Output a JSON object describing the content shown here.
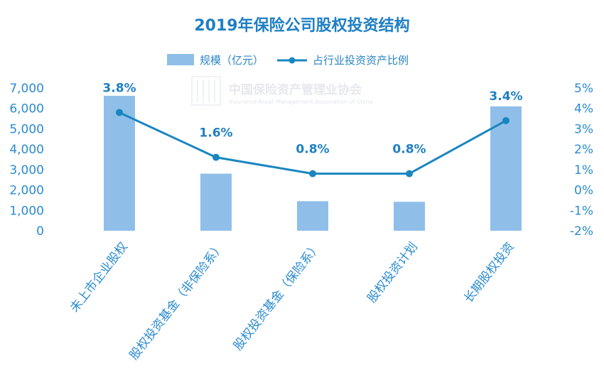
{
  "chart_data": {
    "type": "bar",
    "title": "2019年保险公司股权投资结构",
    "categories": [
      "未上市企业股权",
      "股权投资基金（非保险系）",
      "股权投资基金（保险系）",
      "股权投资计划",
      "长期股权投资"
    ],
    "series": [
      {
        "name": "规模（亿元）",
        "type": "bar",
        "axis": "left",
        "values": [
          6620,
          2800,
          1450,
          1420,
          6100
        ],
        "color": "#8fbfe9"
      },
      {
        "name": "占行业投资资产比例",
        "type": "line",
        "axis": "right",
        "values": [
          3.8,
          1.6,
          0.8,
          0.8,
          3.4
        ],
        "labels": [
          "3.8%",
          "1.6%",
          "0.8%",
          "0.8%",
          "3.4%"
        ],
        "color": "#1a86c0"
      }
    ],
    "y_left": {
      "min": 0,
      "max": 7000,
      "ticks": [
        "0",
        "1,000",
        "2,000",
        "3,000",
        "4,000",
        "5,000",
        "6,000",
        "7,000"
      ]
    },
    "y_right": {
      "min": -2,
      "max": 5,
      "ticks": [
        "-2%",
        "-1%",
        "0%",
        "1%",
        "2%",
        "3%",
        "4%",
        "5%"
      ]
    },
    "grid": false,
    "legend_position": "top",
    "watermark": {
      "text_cn": "中国保险资产管理业协会",
      "text_en": "Insurance Asset Management Association of China"
    }
  }
}
